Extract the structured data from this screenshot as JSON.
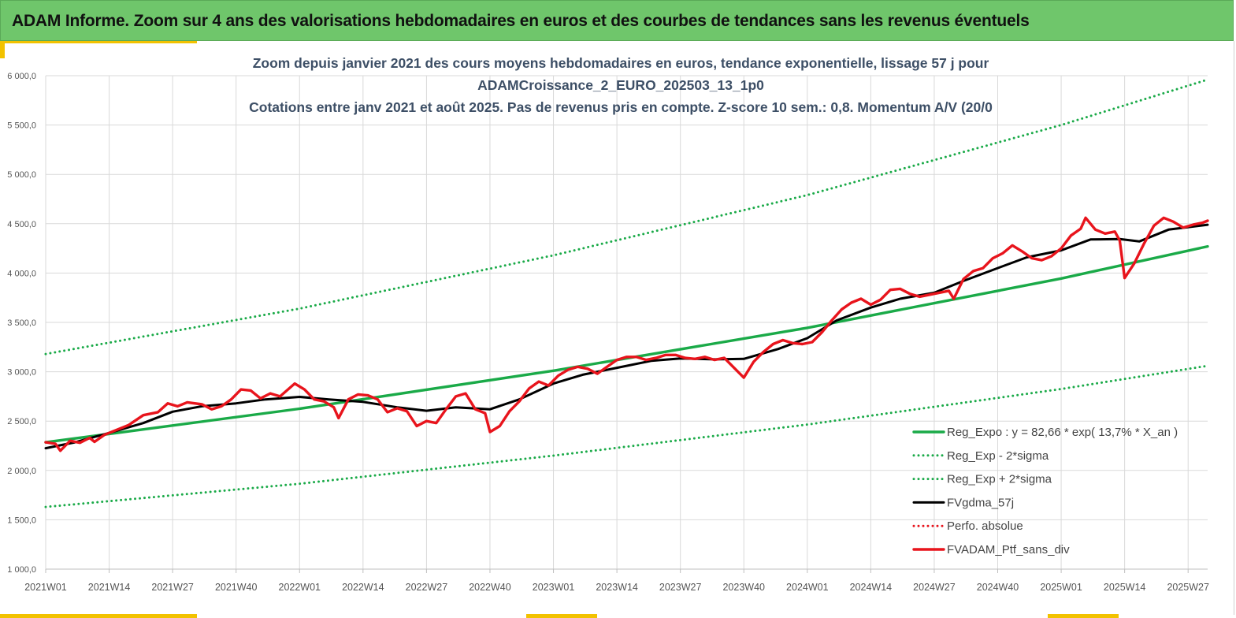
{
  "banner": {
    "title": "ADAM Informe. Zoom sur 4 ans des valorisations hebdomadaires en euros et des courbes de tendances sans les revenus éventuels"
  },
  "colors": {
    "banner_bg": "#6fc66b",
    "trend_green": "#1aaa48",
    "red_series": "#e8141c",
    "black_series": "#000000",
    "accent_yellow": "#f2c200"
  },
  "chart_data": {
    "type": "line",
    "title_lines": [
      "Zoom depuis janvier 2021 des cours moyens hebdomadaires  en euros, tendance exponentielle, lissage 57 j pour",
      "ADAMCroissance_2_EURO_202503_13_1p0",
      "Cotations entre janv 2021 et août 2025. Pas de revenus pris en compte. Z-score 10 sem.: 0,8. Momentum A/V (20/0"
    ],
    "xlabel": "",
    "ylabel": "",
    "ylim": [
      1000,
      6000
    ],
    "y_ticks": [
      "1 000,0",
      "1 500,0",
      "2 000,0",
      "2 500,0",
      "3 000,0",
      "3 500,0",
      "4 000,0",
      "4 500,0",
      "5 000,0",
      "5 500,0",
      "6 000,0"
    ],
    "x_ticks": [
      "2021W01",
      "2021W14",
      "2021W27",
      "2021W40",
      "2022W01",
      "2022W14",
      "2022W27",
      "2022W40",
      "2023W01",
      "2023W14",
      "2023W27",
      "2023W40",
      "2024W01",
      "2024W14",
      "2024W27",
      "2024W40",
      "2025W01",
      "2025W14",
      "2025W27"
    ],
    "x_tick_weeks": [
      0,
      13,
      26,
      39,
      52,
      65,
      78,
      91,
      104,
      117,
      130,
      143,
      156,
      169,
      182,
      195,
      208,
      221,
      234
    ],
    "x_range_weeks": [
      0,
      238
    ],
    "grid": true,
    "legend_position": "bottom-right",
    "series": [
      {
        "name": "Reg_Expo : y = 82,66 * exp( 13,7% *  X_an )",
        "style": "solid-thick",
        "color": "#1aaa48",
        "points": [
          [
            0,
            2285
          ],
          [
            52,
            2625
          ],
          [
            104,
            3010
          ],
          [
            156,
            3445
          ],
          [
            208,
            3945
          ],
          [
            238,
            4270
          ]
        ]
      },
      {
        "name": "Reg_Exp - 2*sigma",
        "style": "dotted",
        "color": "#1aaa48",
        "points": [
          [
            0,
            1630
          ],
          [
            52,
            1865
          ],
          [
            104,
            2150
          ],
          [
            156,
            2465
          ],
          [
            208,
            2825
          ],
          [
            238,
            3060
          ]
        ]
      },
      {
        "name": "Reg_Exp + 2*sigma",
        "style": "dotted",
        "color": "#1aaa48",
        "points": [
          [
            0,
            3180
          ],
          [
            52,
            3640
          ],
          [
            104,
            4180
          ],
          [
            156,
            4790
          ],
          [
            208,
            5500
          ],
          [
            238,
            5960
          ]
        ]
      },
      {
        "name": "FVgdma_57j",
        "style": "solid",
        "color": "#000000",
        "points": [
          [
            0,
            2225
          ],
          [
            6,
            2285
          ],
          [
            13,
            2380
          ],
          [
            20,
            2480
          ],
          [
            26,
            2595
          ],
          [
            32,
            2650
          ],
          [
            39,
            2680
          ],
          [
            45,
            2720
          ],
          [
            52,
            2745
          ],
          [
            58,
            2720
          ],
          [
            65,
            2695
          ],
          [
            72,
            2640
          ],
          [
            78,
            2605
          ],
          [
            84,
            2640
          ],
          [
            91,
            2620
          ],
          [
            97,
            2720
          ],
          [
            104,
            2880
          ],
          [
            110,
            2970
          ],
          [
            117,
            3040
          ],
          [
            124,
            3110
          ],
          [
            130,
            3135
          ],
          [
            137,
            3125
          ],
          [
            143,
            3130
          ],
          [
            150,
            3230
          ],
          [
            156,
            3340
          ],
          [
            162,
            3520
          ],
          [
            169,
            3650
          ],
          [
            175,
            3740
          ],
          [
            182,
            3800
          ],
          [
            188,
            3920
          ],
          [
            195,
            4050
          ],
          [
            201,
            4160
          ],
          [
            208,
            4230
          ],
          [
            214,
            4340
          ],
          [
            220,
            4345
          ],
          [
            224,
            4320
          ],
          [
            230,
            4440
          ],
          [
            238,
            4490
          ]
        ]
      },
      {
        "name": "Perfo. absolue",
        "style": "dotted",
        "color": "#e8141c",
        "points": []
      },
      {
        "name": "FVADAM_Ptf_sans_div",
        "style": "solid-thick",
        "color": "#e8141c",
        "points": [
          [
            0,
            2285
          ],
          [
            2,
            2270
          ],
          [
            3,
            2200
          ],
          [
            5,
            2300
          ],
          [
            7,
            2280
          ],
          [
            9,
            2330
          ],
          [
            10,
            2290
          ],
          [
            12,
            2360
          ],
          [
            14,
            2400
          ],
          [
            17,
            2460
          ],
          [
            20,
            2560
          ],
          [
            23,
            2590
          ],
          [
            25,
            2680
          ],
          [
            27,
            2650
          ],
          [
            29,
            2690
          ],
          [
            32,
            2670
          ],
          [
            34,
            2620
          ],
          [
            36,
            2650
          ],
          [
            38,
            2720
          ],
          [
            40,
            2820
          ],
          [
            42,
            2810
          ],
          [
            44,
            2730
          ],
          [
            46,
            2780
          ],
          [
            48,
            2750
          ],
          [
            51,
            2880
          ],
          [
            53,
            2820
          ],
          [
            55,
            2720
          ],
          [
            57,
            2700
          ],
          [
            59,
            2640
          ],
          [
            60,
            2530
          ],
          [
            62,
            2720
          ],
          [
            64,
            2770
          ],
          [
            66,
            2760
          ],
          [
            68,
            2720
          ],
          [
            70,
            2590
          ],
          [
            72,
            2630
          ],
          [
            74,
            2600
          ],
          [
            76,
            2450
          ],
          [
            78,
            2500
          ],
          [
            80,
            2480
          ],
          [
            82,
            2620
          ],
          [
            84,
            2750
          ],
          [
            86,
            2780
          ],
          [
            88,
            2620
          ],
          [
            90,
            2580
          ],
          [
            91,
            2390
          ],
          [
            93,
            2450
          ],
          [
            95,
            2600
          ],
          [
            97,
            2700
          ],
          [
            99,
            2830
          ],
          [
            101,
            2900
          ],
          [
            103,
            2860
          ],
          [
            105,
            2960
          ],
          [
            107,
            3020
          ],
          [
            109,
            3050
          ],
          [
            111,
            3030
          ],
          [
            113,
            2980
          ],
          [
            115,
            3050
          ],
          [
            117,
            3120
          ],
          [
            119,
            3150
          ],
          [
            121,
            3150
          ],
          [
            123,
            3120
          ],
          [
            125,
            3140
          ],
          [
            127,
            3170
          ],
          [
            129,
            3170
          ],
          [
            131,
            3140
          ],
          [
            133,
            3130
          ],
          [
            135,
            3150
          ],
          [
            137,
            3120
          ],
          [
            139,
            3140
          ],
          [
            141,
            3040
          ],
          [
            143,
            2940
          ],
          [
            145,
            3100
          ],
          [
            147,
            3200
          ],
          [
            149,
            3280
          ],
          [
            151,
            3320
          ],
          [
            153,
            3290
          ],
          [
            155,
            3280
          ],
          [
            157,
            3300
          ],
          [
            159,
            3400
          ],
          [
            161,
            3520
          ],
          [
            163,
            3630
          ],
          [
            165,
            3700
          ],
          [
            167,
            3740
          ],
          [
            169,
            3680
          ],
          [
            171,
            3730
          ],
          [
            173,
            3830
          ],
          [
            175,
            3840
          ],
          [
            177,
            3790
          ],
          [
            179,
            3760
          ],
          [
            181,
            3780
          ],
          [
            183,
            3800
          ],
          [
            185,
            3820
          ],
          [
            186,
            3740
          ],
          [
            188,
            3940
          ],
          [
            190,
            4020
          ],
          [
            192,
            4050
          ],
          [
            194,
            4150
          ],
          [
            196,
            4200
          ],
          [
            198,
            4280
          ],
          [
            200,
            4220
          ],
          [
            202,
            4150
          ],
          [
            204,
            4130
          ],
          [
            206,
            4170
          ],
          [
            208,
            4250
          ],
          [
            210,
            4380
          ],
          [
            212,
            4450
          ],
          [
            213,
            4560
          ],
          [
            215,
            4440
          ],
          [
            217,
            4400
          ],
          [
            219,
            4420
          ],
          [
            220,
            4330
          ],
          [
            221,
            3950
          ],
          [
            223,
            4100
          ],
          [
            225,
            4300
          ],
          [
            227,
            4480
          ],
          [
            229,
            4560
          ],
          [
            231,
            4520
          ],
          [
            233,
            4460
          ],
          [
            235,
            4490
          ],
          [
            237,
            4510
          ],
          [
            238,
            4530
          ]
        ]
      }
    ]
  }
}
